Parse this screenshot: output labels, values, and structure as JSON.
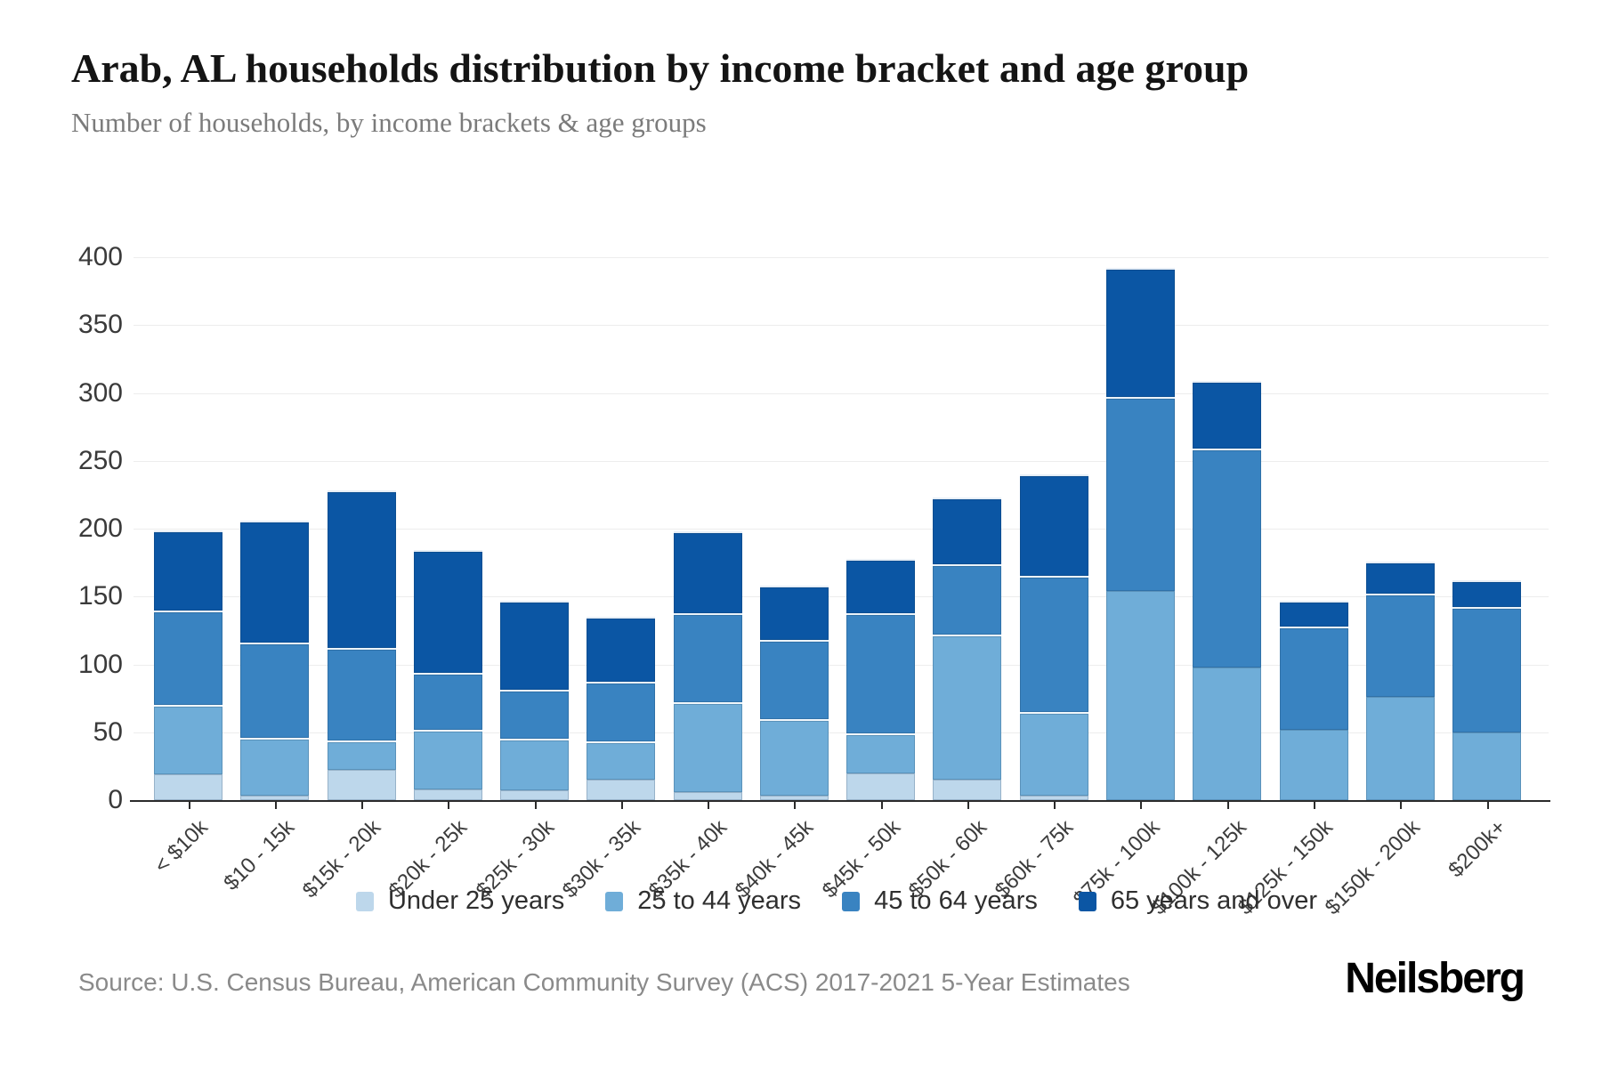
{
  "header": {
    "title": "Arab, AL households distribution by income bracket and age group",
    "subtitle": "Number of households, by income brackets & age groups"
  },
  "chart_data": {
    "type": "bar",
    "stacked": true,
    "title": "Arab, AL households distribution by income bracket and age group",
    "xlabel": "",
    "ylabel": "Number of households",
    "ylim": [
      0,
      400
    ],
    "yticks": [
      0,
      50,
      100,
      150,
      200,
      250,
      300,
      350,
      400
    ],
    "grid": true,
    "legend_position": "bottom",
    "categories": [
      "< $10k",
      "$10 - 15k",
      "$15k - 20k",
      "$20k - 25k",
      "$25k - 30k",
      "$30k - 35k",
      "$35k - 40k",
      "$40k - 45k",
      "$45k - 50k",
      "$50k - 60k",
      "$60k - 75k",
      "$75k - 100k",
      "$100k - 125k",
      "$125k - 150k",
      "$150k - 200k",
      "$200k+"
    ],
    "series": [
      {
        "name": "Under 25 years",
        "color": "#bdd7eb",
        "values": [
          19,
          3,
          22,
          8,
          7,
          15,
          6,
          3,
          20,
          15,
          3,
          0,
          0,
          0,
          0,
          0
        ]
      },
      {
        "name": "25 to 44 years",
        "color": "#6fadd8",
        "values": [
          51,
          43,
          22,
          44,
          38,
          28,
          66,
          57,
          29,
          107,
          62,
          154,
          98,
          52,
          76,
          50
        ]
      },
      {
        "name": "45 to 64 years",
        "color": "#3983c1",
        "values": [
          70,
          70,
          68,
          42,
          36,
          44,
          66,
          58,
          89,
          52,
          100,
          143,
          161,
          76,
          76,
          92
        ]
      },
      {
        "name": "65 years and over",
        "color": "#0b56a4",
        "values": [
          59,
          90,
          116,
          90,
          66,
          48,
          60,
          40,
          40,
          49,
          75,
          95,
          50,
          19,
          24,
          20
        ]
      }
    ],
    "totals": [
      199,
      206,
      228,
      184,
      147,
      135,
      198,
      158,
      178,
      223,
      240,
      392,
      309,
      147,
      176,
      162
    ]
  },
  "footer": {
    "source": "Source: U.S. Census Bureau, American Community Survey (ACS) 2017-2021 5-Year Estimates",
    "brand": "Neilsberg"
  }
}
